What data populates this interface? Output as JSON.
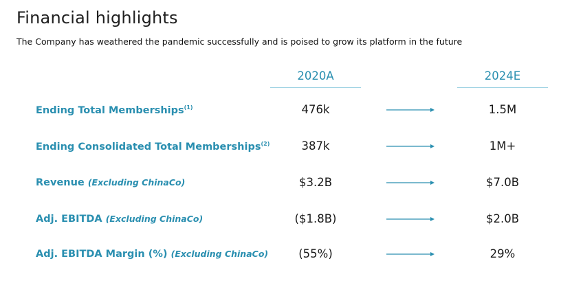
{
  "title": "Financial highlights",
  "subtitle": "The Company has weathered the pandemic successfully and is poised to grow its platform in the future",
  "columns": {
    "c2020": "2020A",
    "c2024": "2024E"
  },
  "accent_color": "#2a8fb0",
  "rows": [
    {
      "label": "Ending Total Memberships",
      "sup": "(1)",
      "note": "",
      "v2020": "476k",
      "v2024": "1.5M"
    },
    {
      "label": "Ending Consolidated Total Memberships",
      "sup": "(2)",
      "note": "",
      "v2020": "387k",
      "v2024": "1M+"
    },
    {
      "label": "Revenue",
      "sup": "",
      "note": "(Excluding ChinaCo)",
      "v2020": "$3.2B",
      "v2024": "$7.0B"
    },
    {
      "label": "Adj. EBITDA",
      "sup": "",
      "note": "(Excluding ChinaCo)",
      "v2020": "($1.8B)",
      "v2024": "$2.0B"
    },
    {
      "label": "Adj. EBITDA Margin (%)",
      "sup": "",
      "note": "(Excluding ChinaCo)",
      "v2020": "(55%)",
      "v2024": "29%"
    }
  ]
}
